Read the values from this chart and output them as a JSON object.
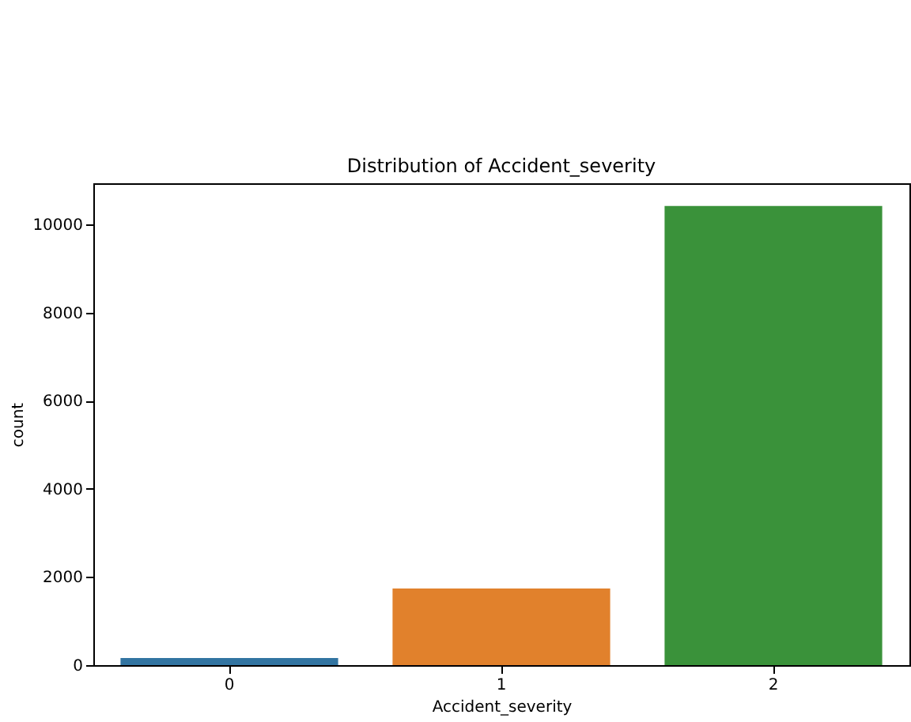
{
  "chart_data": {
    "type": "bar",
    "title": "Distribution of Accident_severity",
    "xlabel": "Accident_severity",
    "ylabel": "count",
    "categories": [
      "0",
      "1",
      "2"
    ],
    "values": [
      160,
      1740,
      10420
    ],
    "colors": [
      "#3274a1",
      "#e1812c",
      "#3a923a"
    ],
    "ylim": [
      0,
      10936
    ],
    "yticks": [
      0,
      2000,
      4000,
      6000,
      8000,
      10000
    ],
    "grid": false
  }
}
